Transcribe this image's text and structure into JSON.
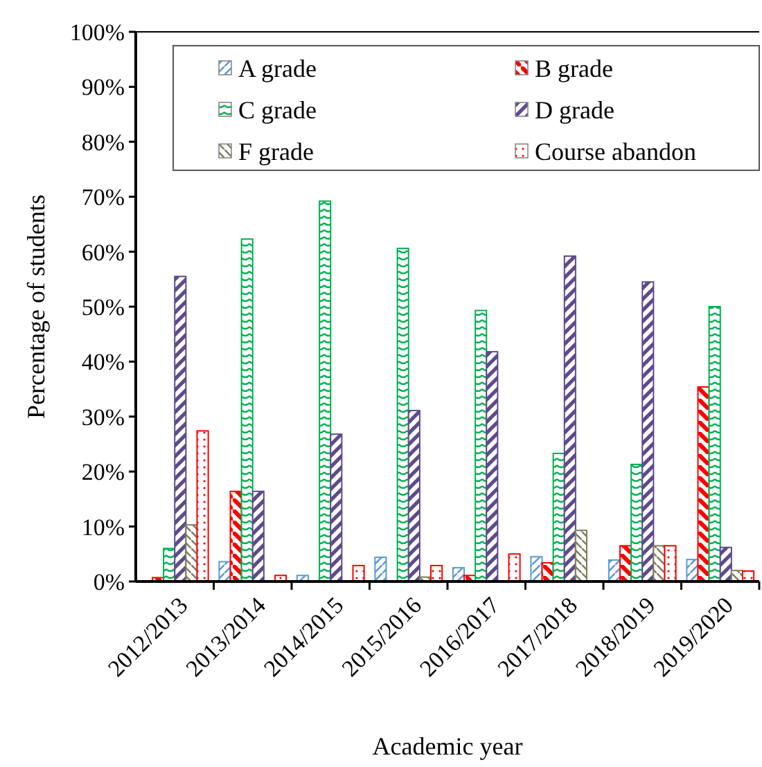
{
  "chart_data": {
    "type": "bar",
    "xlabel": "Academic year",
    "ylabel": "Percentage of students",
    "categories": [
      "2012/2013",
      "2013/2014",
      "2014/2015",
      "2015/2016",
      "2016/2017",
      "2017/2018",
      "2018/2019",
      "2019/2020"
    ],
    "series": [
      {
        "name": "A grade",
        "color": "#5b9bd5",
        "values": [
          0,
          3.6,
          1.1,
          4.4,
          2.5,
          4.5,
          3.9,
          4.0
        ]
      },
      {
        "name": "B grade",
        "color": "#ff0000",
        "values": [
          0.7,
          16.4,
          0,
          0,
          1.1,
          3.4,
          6.5,
          35.4
        ]
      },
      {
        "name": "C grade",
        "color": "#00b050",
        "values": [
          6.0,
          62.3,
          69.2,
          60.6,
          49.3,
          23.3,
          21.3,
          50.0
        ]
      },
      {
        "name": "D grade",
        "color": "#5f4b8b",
        "values": [
          55.5,
          16.4,
          26.8,
          31.1,
          41.8,
          59.2,
          54.5,
          6.2
        ]
      },
      {
        "name": "F grade",
        "color": "#7f7f5f",
        "values": [
          10.3,
          0,
          0,
          0.8,
          0,
          9.3,
          6.5,
          2.0
        ]
      },
      {
        "name": "Course abandon",
        "color": "#ff0000",
        "values": [
          27.4,
          1.1,
          2.9,
          2.9,
          5.0,
          0,
          6.5,
          1.9
        ]
      }
    ],
    "ylim": [
      0,
      100
    ],
    "yticks": [
      {
        "value": 0,
        "label": "0%"
      },
      {
        "value": 10,
        "label": "10%"
      },
      {
        "value": 20,
        "label": "20%"
      },
      {
        "value": 30,
        "label": "30%"
      },
      {
        "value": 40,
        "label": "40%"
      },
      {
        "value": 50,
        "label": "50%"
      },
      {
        "value": 60,
        "label": "60%"
      },
      {
        "value": 70,
        "label": "70%"
      },
      {
        "value": 80,
        "label": "80%"
      },
      {
        "value": 90,
        "label": "90%"
      },
      {
        "value": 100,
        "label": "100%"
      }
    ],
    "grid": false,
    "legend": "top"
  }
}
